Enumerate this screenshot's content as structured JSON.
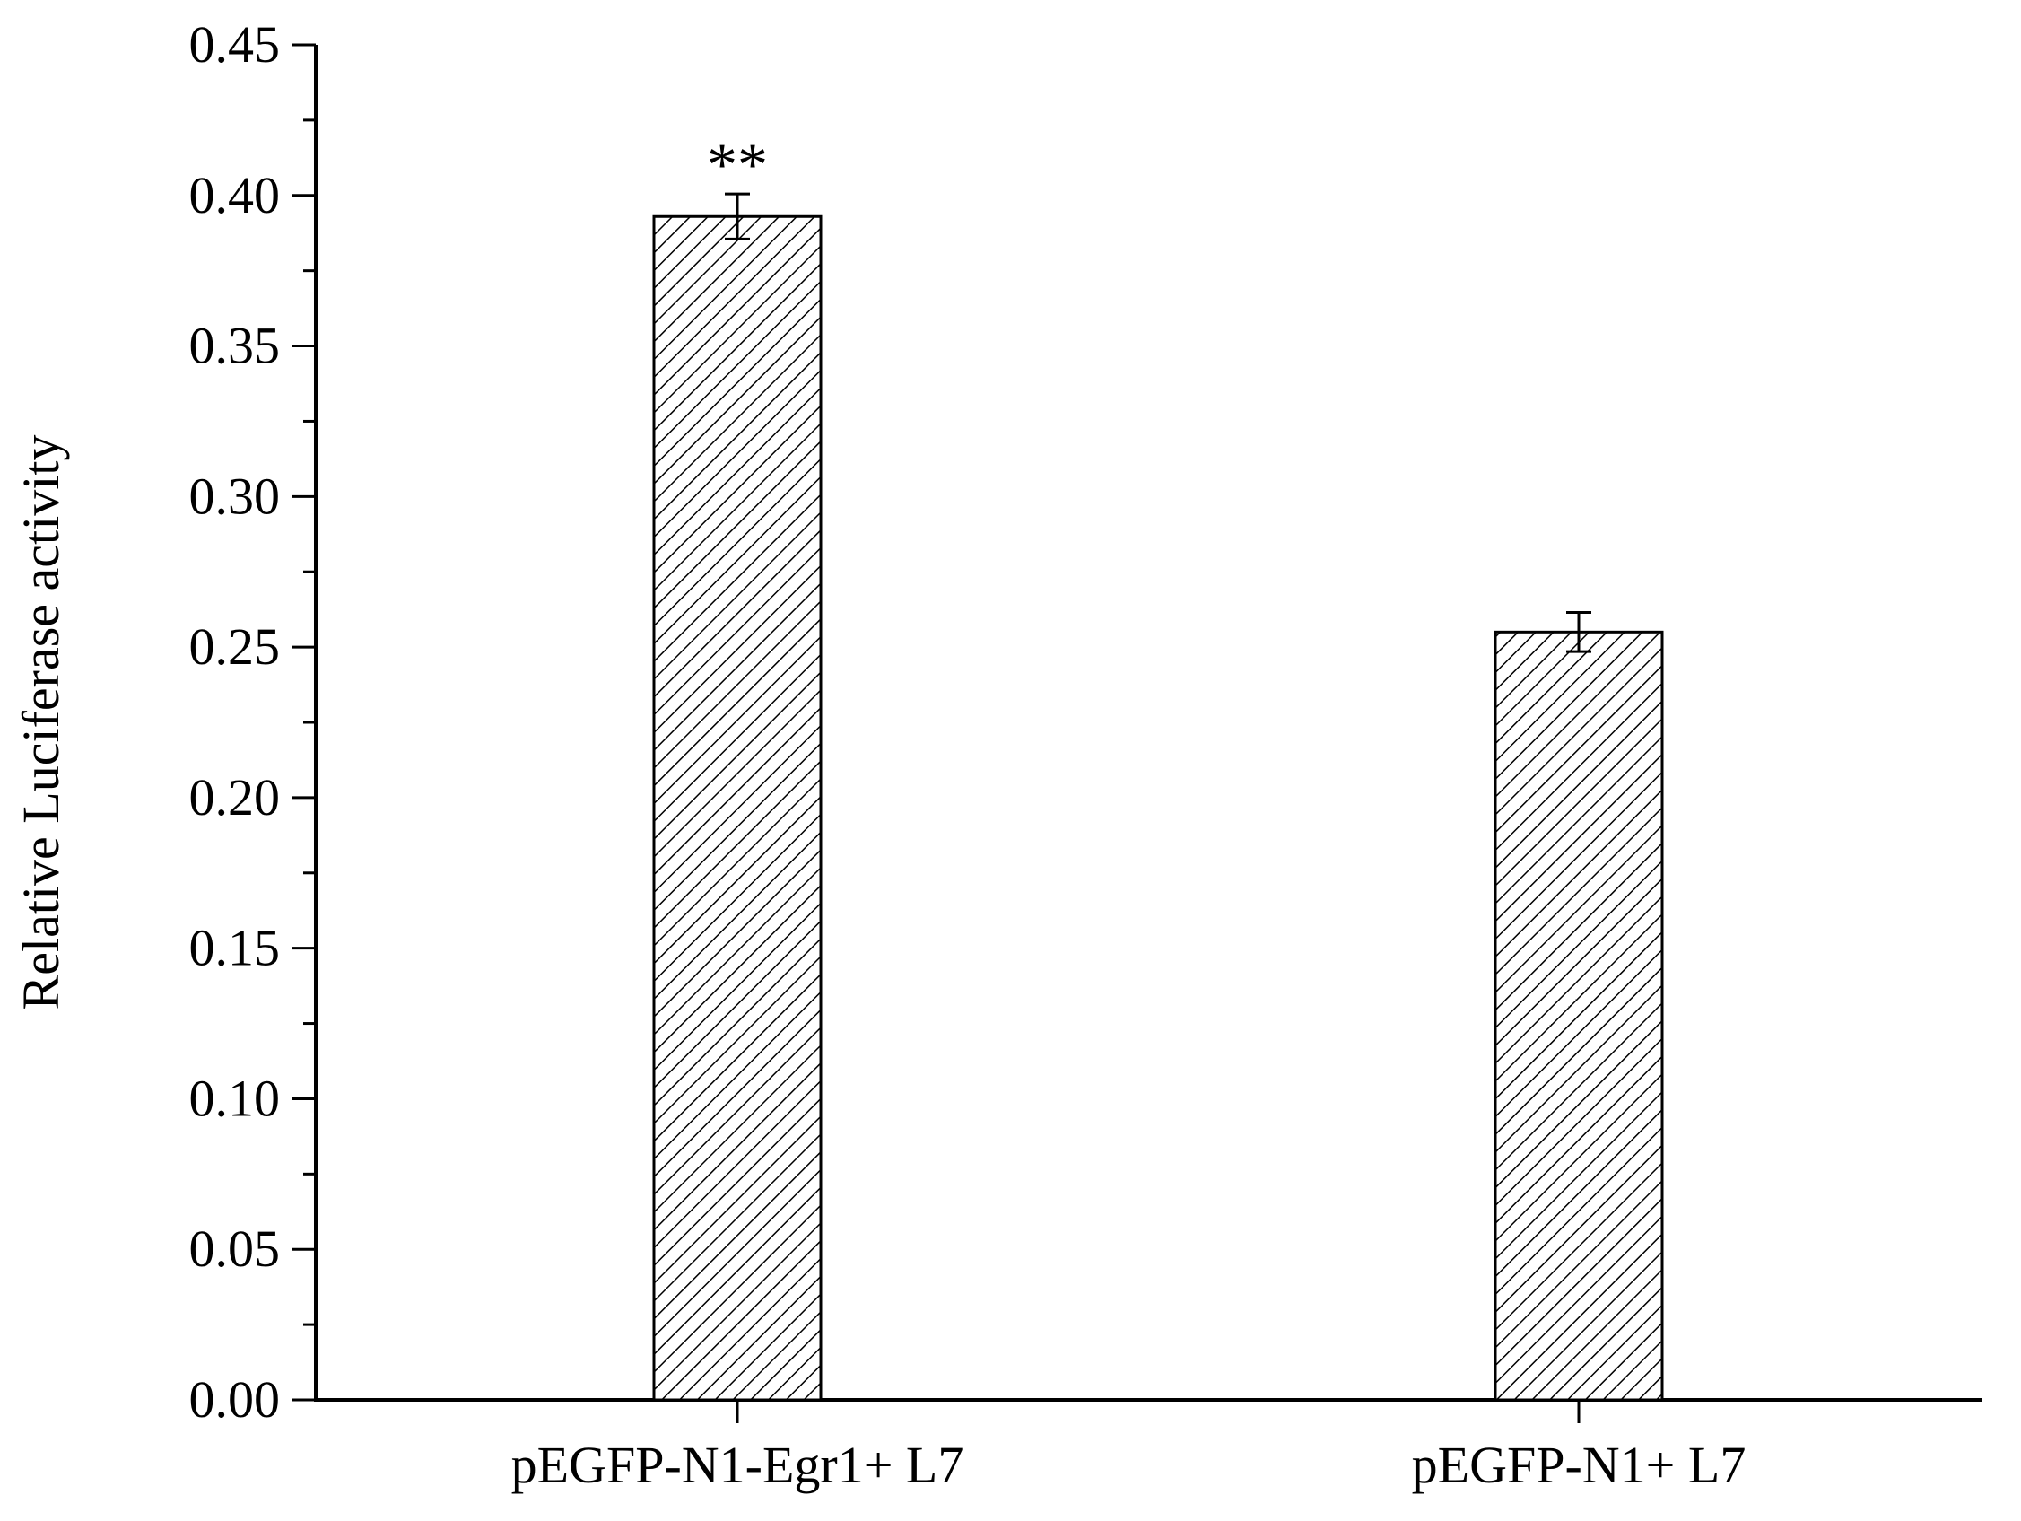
{
  "chart_data": {
    "type": "bar",
    "categories": [
      "pEGFP-N1-Egr1+ L7",
      "pEGFP-N1+ L7"
    ],
    "series": [
      {
        "values": [
          0.393,
          0.255
        ],
        "errors": [
          0.0075,
          0.0065
        ],
        "pattern": "diagonal-hatch"
      }
    ],
    "annotations": [
      "**",
      ""
    ],
    "title": "",
    "xlabel": "",
    "ylabel": "Relative Luciferase activity",
    "ylim": [
      0,
      0.45
    ],
    "yticks": [
      "0.00",
      "0.05",
      "0.10",
      "0.15",
      "0.20",
      "0.25",
      "0.30",
      "0.35",
      "0.40",
      "0.45"
    ],
    "grid": false,
    "legend": "none",
    "colors": {
      "bar_fill": "#ffffff",
      "hatch": "#000000",
      "axis": "#000000"
    }
  }
}
